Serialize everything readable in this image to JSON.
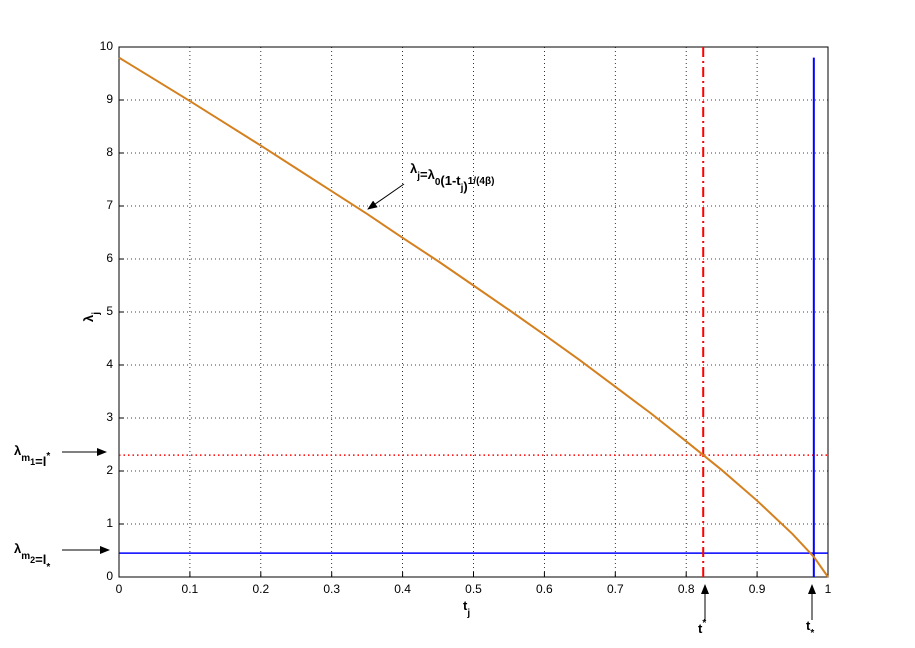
{
  "chart_data": {
    "type": "line",
    "xlim": [
      0,
      1
    ],
    "ylim": [
      0,
      10
    ],
    "xticks": [
      0,
      0.1,
      0.2,
      0.3,
      0.4,
      0.5,
      0.6,
      0.7,
      0.8,
      0.9,
      1
    ],
    "yticks": [
      0,
      1,
      2,
      3,
      4,
      5,
      6,
      7,
      8,
      9,
      10
    ],
    "grid": true,
    "xlabel": [
      {
        "text": "t",
        "sub": "j"
      }
    ],
    "ylabel": [
      {
        "text": "λ",
        "sub": "j"
      }
    ],
    "series": [
      {
        "color": "#d4801f",
        "x": [
          0,
          0.05,
          0.1,
          0.15,
          0.2,
          0.25,
          0.3,
          0.35,
          0.4,
          0.45,
          0.5,
          0.55,
          0.6,
          0.65,
          0.7,
          0.75,
          0.8,
          0.85,
          0.9,
          0.95,
          0.98,
          1
        ],
        "values": [
          9.8,
          9.39,
          8.98,
          8.56,
          8.14,
          7.71,
          7.28,
          6.85,
          6.4,
          5.96,
          5.5,
          5.04,
          4.57,
          4.09,
          3.59,
          3.09,
          2.56,
          2.02,
          1.44,
          0.81,
          0.38,
          0
        ]
      }
    ],
    "hlines": [
      {
        "y": 2.3,
        "color": "#ff0000",
        "style": "dotted"
      },
      {
        "y": 0.45,
        "color": "#0000ff",
        "style": "solid"
      }
    ],
    "vlines": [
      {
        "x": 0.824,
        "ylim": [
          0,
          10
        ],
        "color": "#ff0000",
        "style": "dashdot"
      },
      {
        "x": 0.98,
        "ylim": [
          0,
          9.8
        ],
        "color": "#0000ff",
        "style": "solid"
      }
    ],
    "annotations": [
      [
        {
          "text": "λ",
          "sub": "j"
        },
        {
          "text": "=λ",
          "sub": "0"
        },
        {
          "text": "(1-t",
          "sub": "j"
        },
        {
          "text": ")",
          "sup": "1/(4β)"
        }
      ],
      [
        {
          "text": "λ",
          "sub": "m",
          "subsub": "1"
        },
        {
          "text": "=l",
          "sup": "*"
        }
      ],
      [
        {
          "text": "λ",
          "sub": "m",
          "subsub": "2"
        },
        {
          "text": "=l",
          "sub": "*"
        }
      ],
      [
        {
          "text": "t",
          "sup": "*"
        }
      ],
      [
        {
          "text": "t",
          "sub": "*"
        }
      ]
    ]
  }
}
